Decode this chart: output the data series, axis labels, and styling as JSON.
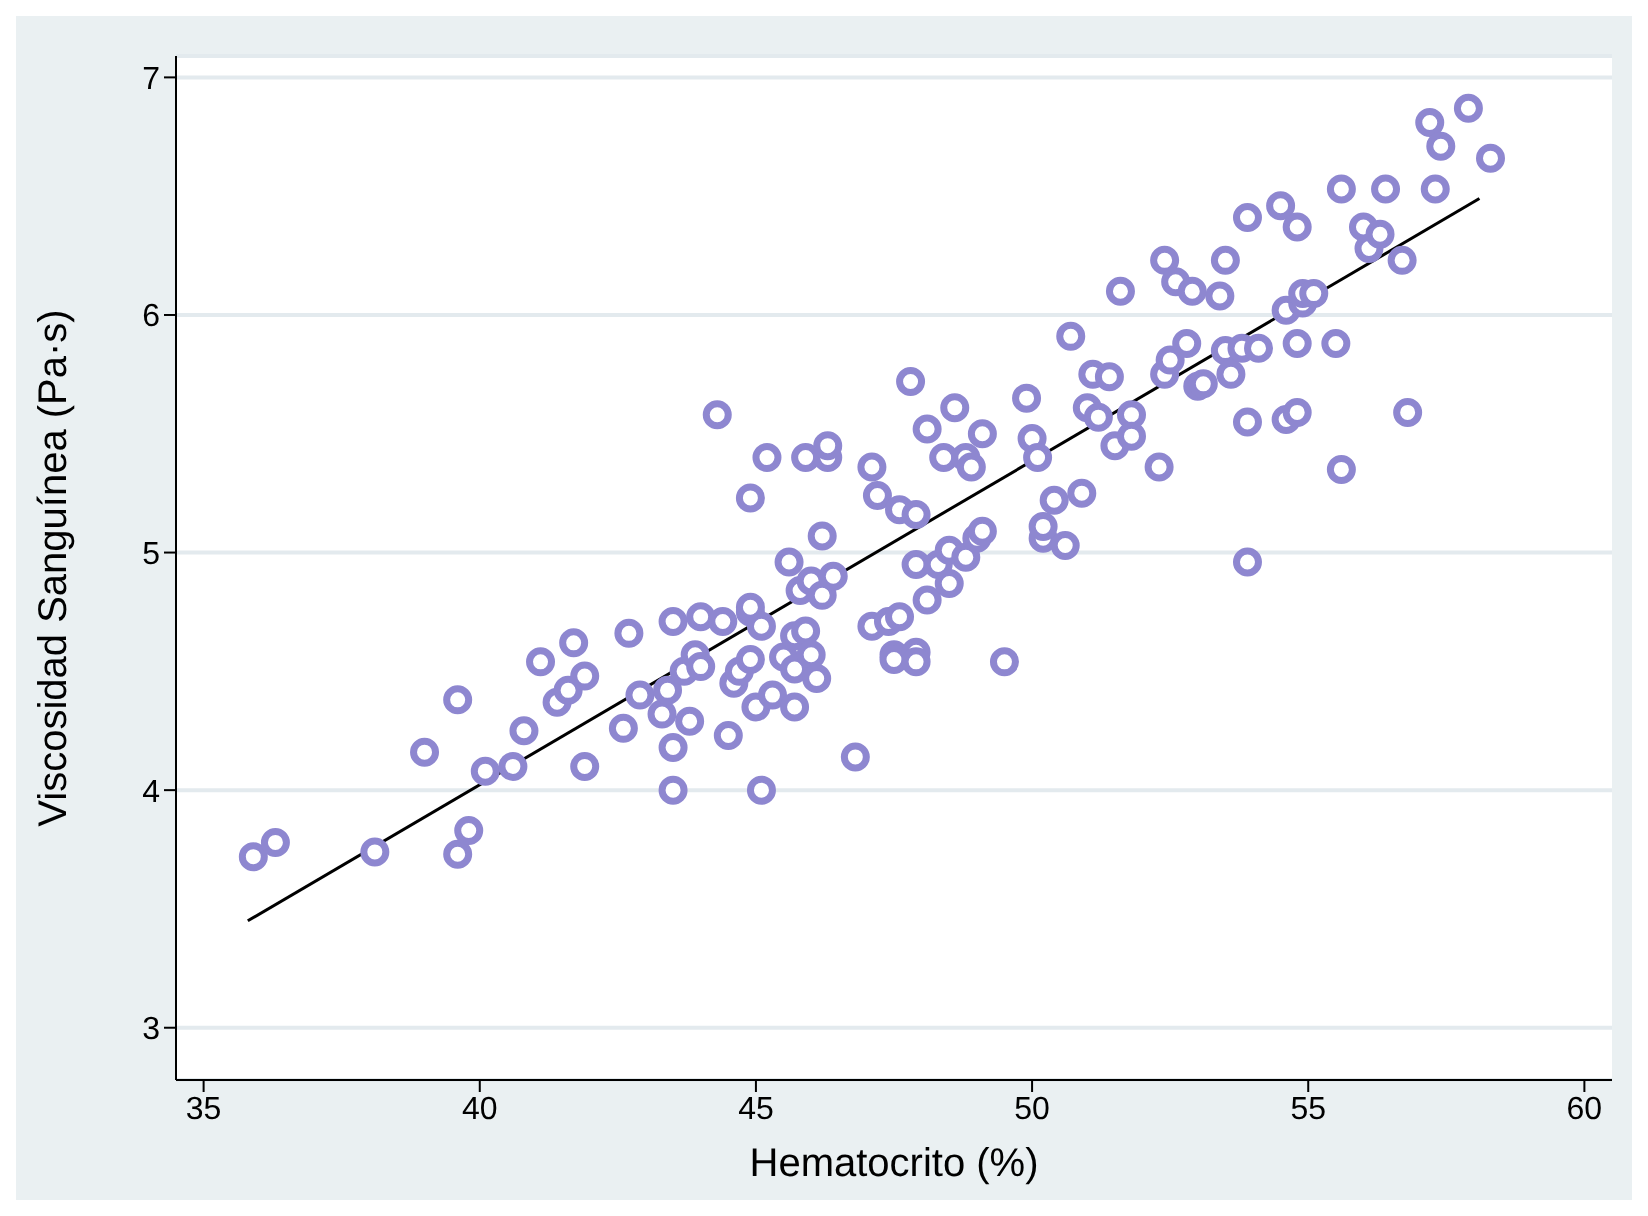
{
  "chart_data": {
    "type": "scatter",
    "xlabel": "Hematocrito (%)",
    "ylabel": "Viscosidad Sanguínea (Pa·s)",
    "xlim": [
      34.5,
      60.5
    ],
    "xticks": [
      35,
      40,
      45,
      50,
      55,
      60
    ],
    "ylim": [
      2.78,
      7.09
    ],
    "yticks": [
      3,
      4,
      5,
      6,
      7
    ],
    "grid": "y",
    "legend": false,
    "series": [
      {
        "marker": "circle",
        "color": "#8e87d0",
        "x": [
          35.9,
          36.3,
          38.1,
          39.6,
          39.8,
          39.6,
          39.0,
          40.1,
          40.6,
          40.8,
          41.1,
          41.4,
          41.6,
          41.7,
          41.9,
          41.9,
          42.7,
          42.6,
          42.9,
          43.3,
          43.4,
          43.5,
          43.5,
          43.5,
          43.7,
          43.9,
          43.8,
          44.0,
          44.0,
          44.3,
          44.4,
          44.5,
          44.6,
          44.7,
          44.9,
          44.9,
          44.9,
          44.9,
          45.1,
          45.0,
          45.1,
          45.2,
          45.3,
          45.5,
          45.6,
          45.7,
          45.7,
          45.7,
          45.8,
          45.9,
          45.9,
          46.0,
          46.0,
          46.1,
          46.2,
          46.3,
          46.3,
          46.2,
          46.4,
          46.8,
          47.1,
          47.1,
          47.2,
          47.4,
          47.5,
          47.5,
          47.6,
          47.6,
          47.8,
          47.9,
          47.9,
          47.9,
          47.9,
          48.1,
          48.1,
          48.3,
          48.4,
          48.5,
          48.5,
          48.6,
          48.8,
          48.8,
          48.9,
          49.0,
          49.1,
          49.1,
          49.5,
          49.9,
          50.0,
          50.1,
          50.2,
          50.2,
          50.4,
          50.6,
          50.7,
          50.9,
          51.0,
          51.1,
          51.2,
          51.4,
          51.5,
          51.6,
          51.8,
          51.8,
          52.3,
          52.4,
          52.4,
          52.5,
          52.6,
          52.8,
          52.9,
          53.0,
          53.1,
          53.4,
          53.5,
          53.5,
          53.6,
          53.8,
          53.9,
          53.9,
          53.9,
          54.1,
          54.5,
          54.6,
          54.6,
          54.8,
          54.8,
          54.8,
          54.9,
          54.9,
          55.1,
          55.5,
          55.6,
          55.6,
          56.0,
          56.1,
          56.3,
          56.4,
          56.7,
          56.8,
          57.2,
          57.3,
          57.4,
          57.9,
          58.3
        ],
        "values": [
          3.72,
          3.78,
          3.74,
          3.73,
          3.83,
          4.38,
          4.16,
          4.08,
          4.1,
          4.25,
          4.54,
          4.37,
          4.42,
          4.62,
          4.48,
          4.1,
          4.66,
          4.26,
          4.4,
          4.32,
          4.42,
          4.71,
          4.18,
          4.0,
          4.5,
          4.57,
          4.29,
          4.52,
          4.73,
          5.58,
          4.71,
          4.23,
          4.45,
          4.5,
          4.75,
          5.23,
          4.55,
          4.77,
          4.69,
          4.35,
          4.0,
          5.4,
          4.4,
          4.56,
          4.96,
          4.51,
          4.65,
          4.35,
          4.84,
          4.67,
          5.4,
          4.88,
          4.57,
          4.47,
          4.82,
          5.4,
          5.45,
          5.07,
          4.9,
          4.14,
          4.69,
          5.36,
          5.24,
          4.71,
          4.57,
          4.55,
          5.18,
          4.73,
          5.72,
          4.58,
          4.54,
          5.16,
          4.95,
          5.52,
          4.8,
          4.95,
          5.4,
          4.87,
          5.01,
          5.61,
          4.98,
          5.4,
          5.36,
          5.06,
          5.09,
          5.5,
          4.54,
          5.65,
          5.48,
          5.4,
          5.06,
          5.11,
          5.22,
          5.03,
          5.91,
          5.25,
          5.61,
          5.75,
          5.57,
          5.74,
          5.45,
          6.1,
          5.58,
          5.49,
          5.36,
          5.75,
          6.23,
          5.81,
          6.14,
          5.88,
          6.1,
          5.7,
          5.71,
          6.08,
          5.85,
          6.23,
          5.75,
          5.86,
          6.41,
          5.55,
          4.96,
          5.86,
          6.46,
          6.02,
          5.56,
          5.88,
          6.37,
          5.59,
          6.05,
          6.09,
          6.09,
          5.88,
          6.53,
          5.35,
          6.37,
          6.28,
          6.34,
          6.53,
          6.23,
          5.59,
          6.81,
          6.53,
          6.71,
          6.87,
          6.66
        ]
      },
      {
        "type": "line",
        "color": "#000000",
        "x": [
          35.8,
          58.1
        ],
        "values": [
          3.45,
          6.49
        ]
      }
    ]
  }
}
